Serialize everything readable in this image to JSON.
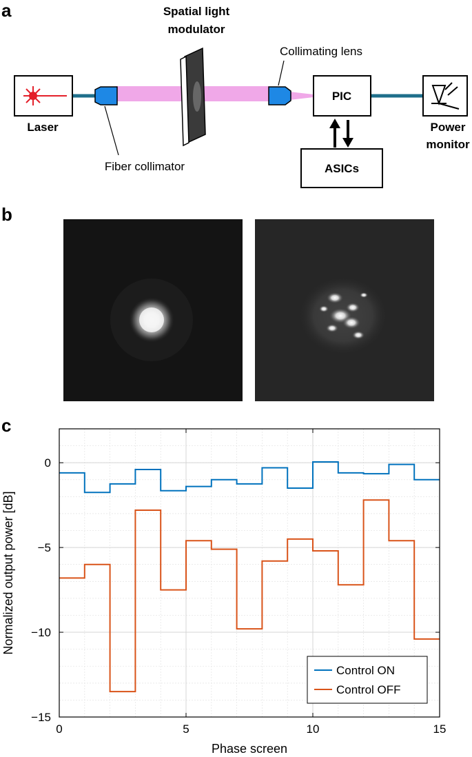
{
  "figure": {
    "panel_labels": [
      "a",
      "b",
      "c"
    ],
    "setup": {
      "laser_label": "Laser",
      "slm_label_line1": "Spatial light",
      "slm_label_line2": "modulator",
      "collimating_lens_label": "Collimating lens",
      "fiber_collimator_label": "Fiber collimator",
      "pic_label": "PIC",
      "asics_label": "ASICs",
      "power_monitor_line1": "Power",
      "power_monitor_line2": "monitor",
      "beam_color": "#f0a8e8",
      "fiber_color": "#1f6f8b",
      "collimator_color": "#1e88e5"
    },
    "beam_images": [
      {
        "name": "beam-profile-focused"
      },
      {
        "name": "beam-profile-speckle"
      }
    ]
  },
  "chart_data": {
    "type": "line",
    "step": true,
    "xlabel": "Phase screen",
    "ylabel": "Normalized output power [dB]",
    "xlim": [
      0,
      15
    ],
    "ylim": [
      -15,
      2
    ],
    "xticks": [
      0,
      5,
      10,
      15
    ],
    "yticks": [
      0,
      -5,
      -10,
      -15
    ],
    "grid": true,
    "legend_position": "bottom-right",
    "series": [
      {
        "name": "Control ON",
        "color": "#0072bd",
        "x": [
          0,
          1,
          2,
          3,
          4,
          5,
          6,
          7,
          8,
          9,
          10,
          11,
          12,
          13,
          14,
          15
        ],
        "y": [
          -0.6,
          -1.75,
          -1.25,
          -0.4,
          -1.65,
          -1.4,
          -1.0,
          -1.25,
          -0.3,
          -1.5,
          0.05,
          -0.6,
          -0.65,
          -0.1,
          -1.0,
          -1.0
        ]
      },
      {
        "name": "Control OFF",
        "color": "#d95319",
        "x": [
          0,
          1,
          2,
          3,
          4,
          5,
          6,
          7,
          8,
          9,
          10,
          11,
          12,
          13,
          14,
          15
        ],
        "y": [
          -6.8,
          -6.0,
          -13.5,
          -2.8,
          -7.5,
          -4.6,
          -5.1,
          -9.8,
          -5.8,
          -4.5,
          -5.2,
          -7.2,
          -2.2,
          -4.6,
          -10.4,
          -10.4
        ]
      }
    ]
  }
}
